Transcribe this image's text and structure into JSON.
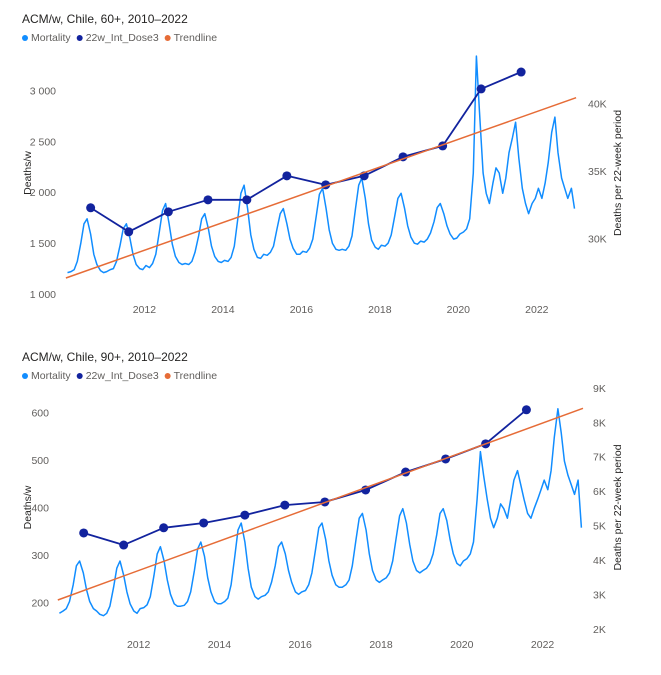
{
  "chart_data": [
    {
      "type": "line",
      "title": "ACM/w, Chile, 60+, 2010–2022",
      "ylabel": "Deaths/w",
      "y2label": "Deaths per 22-week period",
      "xlim": [
        2009.9,
        2023.1
      ],
      "xticks": [
        2012,
        2014,
        2016,
        2018,
        2020,
        2022
      ],
      "ylim": [
        1000,
        3400
      ],
      "yticks": [
        {
          "value": 1000,
          "label": "1 000"
        },
        {
          "value": 1500,
          "label": "1 500"
        },
        {
          "value": 2000,
          "label": "2 000"
        },
        {
          "value": 2500,
          "label": "2 500"
        },
        {
          "value": 3000,
          "label": "3 000"
        }
      ],
      "y2lim": [
        25900,
        44000
      ],
      "y2ticks": [
        {
          "value": 30000,
          "label": "30K"
        },
        {
          "value": 35000,
          "label": "35K"
        },
        {
          "value": 40000,
          "label": "40K"
        }
      ],
      "series": [
        {
          "name": "Mortality",
          "color": "#118dff",
          "x": [
            2010.04,
            2010.13,
            2010.21,
            2010.29,
            2010.38,
            2010.46,
            2010.54,
            2010.63,
            2010.71,
            2010.79,
            2010.88,
            2010.96,
            2011.04,
            2011.13,
            2011.21,
            2011.29,
            2011.38,
            2011.46,
            2011.54,
            2011.63,
            2011.71,
            2011.79,
            2011.88,
            2011.96,
            2012.04,
            2012.13,
            2012.21,
            2012.29,
            2012.38,
            2012.46,
            2012.54,
            2012.63,
            2012.71,
            2012.79,
            2012.88,
            2012.96,
            2013.04,
            2013.13,
            2013.21,
            2013.29,
            2013.38,
            2013.46,
            2013.54,
            2013.63,
            2013.71,
            2013.79,
            2013.88,
            2013.96,
            2014.04,
            2014.13,
            2014.21,
            2014.29,
            2014.38,
            2014.46,
            2014.54,
            2014.63,
            2014.71,
            2014.79,
            2014.88,
            2014.96,
            2015.04,
            2015.13,
            2015.21,
            2015.29,
            2015.38,
            2015.46,
            2015.54,
            2015.63,
            2015.71,
            2015.79,
            2015.88,
            2015.96,
            2016.04,
            2016.13,
            2016.21,
            2016.29,
            2016.38,
            2016.46,
            2016.54,
            2016.63,
            2016.71,
            2016.79,
            2016.88,
            2016.96,
            2017.04,
            2017.13,
            2017.21,
            2017.29,
            2017.38,
            2017.46,
            2017.54,
            2017.63,
            2017.71,
            2017.79,
            2017.88,
            2017.96,
            2018.04,
            2018.13,
            2018.21,
            2018.29,
            2018.38,
            2018.46,
            2018.54,
            2018.63,
            2018.71,
            2018.79,
            2018.88,
            2018.96,
            2019.04,
            2019.13,
            2019.21,
            2019.29,
            2019.38,
            2019.46,
            2019.54,
            2019.63,
            2019.71,
            2019.79,
            2019.88,
            2019.96,
            2020.04,
            2020.13,
            2020.21,
            2020.29,
            2020.38,
            2020.46,
            2020.54,
            2020.63,
            2020.71,
            2020.79,
            2020.88,
            2020.96,
            2021.04,
            2021.13,
            2021.21,
            2021.29,
            2021.38,
            2021.46,
            2021.54,
            2021.63,
            2021.71,
            2021.79,
            2021.88,
            2021.96,
            2022.04,
            2022.13,
            2022.21,
            2022.29,
            2022.38,
            2022.46,
            2022.54,
            2022.63,
            2022.71,
            2022.79,
            2022.88,
            2022.96
          ],
          "values": [
            1220,
            1230,
            1250,
            1330,
            1510,
            1700,
            1750,
            1600,
            1400,
            1300,
            1240,
            1220,
            1230,
            1250,
            1260,
            1330,
            1490,
            1650,
            1700,
            1560,
            1400,
            1300,
            1260,
            1250,
            1290,
            1270,
            1310,
            1400,
            1620,
            1830,
            1900,
            1700,
            1500,
            1380,
            1320,
            1300,
            1310,
            1300,
            1330,
            1420,
            1580,
            1750,
            1800,
            1650,
            1480,
            1380,
            1330,
            1320,
            1340,
            1330,
            1370,
            1480,
            1750,
            2000,
            2080,
            1850,
            1590,
            1450,
            1370,
            1360,
            1400,
            1390,
            1420,
            1480,
            1650,
            1800,
            1850,
            1700,
            1550,
            1460,
            1400,
            1400,
            1430,
            1420,
            1460,
            1550,
            1780,
            1990,
            2050,
            1850,
            1640,
            1510,
            1450,
            1440,
            1450,
            1440,
            1480,
            1580,
            1850,
            2080,
            2150,
            1950,
            1700,
            1540,
            1470,
            1450,
            1490,
            1480,
            1510,
            1590,
            1780,
            1950,
            2000,
            1850,
            1680,
            1570,
            1510,
            1500,
            1530,
            1520,
            1550,
            1610,
            1720,
            1860,
            1900,
            1800,
            1680,
            1600,
            1550,
            1560,
            1600,
            1620,
            1650,
            1750,
            2200,
            3350,
            2800,
            2200,
            2000,
            1900,
            2100,
            2250,
            2200,
            2000,
            2150,
            2400,
            2550,
            2700,
            2350,
            2050,
            1900,
            1800,
            1900,
            1950,
            2050,
            1950,
            2100,
            2300,
            2600,
            2750,
            2400,
            2150,
            2050,
            1950,
            2050,
            1850
          ]
        },
        {
          "name": "22w_Int_Dose3",
          "color": "#12239e",
          "axis": "y2",
          "x": [
            2010.63,
            2011.6,
            2012.61,
            2013.62,
            2014.61,
            2015.63,
            2016.62,
            2017.6,
            2018.59,
            2019.6,
            2020.58,
            2021.6
          ],
          "values": [
            32370,
            30590,
            32070,
            32960,
            32960,
            34740,
            34070,
            34740,
            36150,
            36960,
            41190,
            42440
          ]
        },
        {
          "name": "Trendline",
          "color": "#e66c37",
          "x": [
            2010,
            2023
          ],
          "values": [
            1167,
            2941
          ]
        }
      ]
    },
    {
      "type": "line",
      "title": "ACM/w, Chile, 90+, 2010–2022",
      "ylabel": "Deaths/w",
      "y2label": "Deaths per 22-week period",
      "xlim": [
        2009.93,
        2023.05
      ],
      "xticks": [
        2012,
        2014,
        2016,
        2018,
        2020,
        2022
      ],
      "ylim": [
        145,
        660
      ],
      "yticks": [
        200,
        300,
        400,
        500,
        600
      ],
      "y2lim": [
        2000,
        9120
      ],
      "y2ticks": [
        {
          "value": 2000,
          "label": "2K"
        },
        {
          "value": 3000,
          "label": "3K"
        },
        {
          "value": 4000,
          "label": "4K"
        },
        {
          "value": 5000,
          "label": "5K"
        },
        {
          "value": 6000,
          "label": "6K"
        },
        {
          "value": 7000,
          "label": "7K"
        },
        {
          "value": 8000,
          "label": "8K"
        },
        {
          "value": 9000,
          "label": "9K"
        }
      ],
      "series": [
        {
          "name": "Mortality",
          "color": "#118dff",
          "x": [
            2010.04,
            2010.13,
            2010.21,
            2010.29,
            2010.38,
            2010.46,
            2010.54,
            2010.63,
            2010.71,
            2010.79,
            2010.88,
            2010.96,
            2011.04,
            2011.13,
            2011.21,
            2011.29,
            2011.38,
            2011.46,
            2011.54,
            2011.63,
            2011.71,
            2011.79,
            2011.88,
            2011.96,
            2012.04,
            2012.13,
            2012.21,
            2012.29,
            2012.38,
            2012.46,
            2012.54,
            2012.63,
            2012.71,
            2012.79,
            2012.88,
            2012.96,
            2013.04,
            2013.13,
            2013.21,
            2013.29,
            2013.38,
            2013.46,
            2013.54,
            2013.63,
            2013.71,
            2013.79,
            2013.88,
            2013.96,
            2014.04,
            2014.13,
            2014.21,
            2014.29,
            2014.38,
            2014.46,
            2014.54,
            2014.63,
            2014.71,
            2014.79,
            2014.88,
            2014.96,
            2015.04,
            2015.13,
            2015.21,
            2015.29,
            2015.38,
            2015.46,
            2015.54,
            2015.63,
            2015.71,
            2015.79,
            2015.88,
            2015.96,
            2016.04,
            2016.13,
            2016.21,
            2016.29,
            2016.38,
            2016.46,
            2016.54,
            2016.63,
            2016.71,
            2016.79,
            2016.88,
            2016.96,
            2017.04,
            2017.13,
            2017.21,
            2017.29,
            2017.38,
            2017.46,
            2017.54,
            2017.63,
            2017.71,
            2017.79,
            2017.88,
            2017.96,
            2018.04,
            2018.13,
            2018.21,
            2018.29,
            2018.38,
            2018.46,
            2018.54,
            2018.63,
            2018.71,
            2018.79,
            2018.88,
            2018.96,
            2019.04,
            2019.13,
            2019.21,
            2019.29,
            2019.38,
            2019.46,
            2019.54,
            2019.63,
            2019.71,
            2019.79,
            2019.88,
            2019.96,
            2020.04,
            2020.13,
            2020.21,
            2020.29,
            2020.38,
            2020.46,
            2020.54,
            2020.63,
            2020.71,
            2020.79,
            2020.88,
            2020.96,
            2021.04,
            2021.13,
            2021.21,
            2021.29,
            2021.38,
            2021.46,
            2021.54,
            2021.63,
            2021.71,
            2021.79,
            2021.88,
            2021.96,
            2022.04,
            2022.13,
            2022.21,
            2022.29,
            2022.38,
            2022.46,
            2022.54,
            2022.63,
            2022.71,
            2022.79,
            2022.88,
            2022.96
          ],
          "values": [
            180,
            185,
            190,
            205,
            240,
            280,
            290,
            265,
            230,
            205,
            190,
            185,
            178,
            175,
            180,
            195,
            235,
            275,
            290,
            260,
            225,
            200,
            185,
            180,
            190,
            192,
            198,
            215,
            260,
            305,
            320,
            290,
            250,
            220,
            200,
            195,
            195,
            197,
            205,
            225,
            270,
            315,
            330,
            300,
            255,
            225,
            205,
            200,
            200,
            205,
            212,
            240,
            300,
            355,
            370,
            330,
            275,
            235,
            215,
            210,
            215,
            218,
            225,
            245,
            280,
            320,
            330,
            305,
            270,
            245,
            225,
            220,
            225,
            228,
            240,
            265,
            315,
            360,
            370,
            335,
            290,
            260,
            240,
            235,
            235,
            240,
            250,
            280,
            335,
            380,
            390,
            355,
            305,
            270,
            250,
            245,
            250,
            255,
            265,
            290,
            340,
            385,
            400,
            370,
            325,
            290,
            270,
            265,
            270,
            275,
            285,
            305,
            345,
            390,
            400,
            375,
            335,
            305,
            285,
            280,
            290,
            295,
            305,
            330,
            420,
            520,
            470,
            420,
            380,
            360,
            380,
            410,
            400,
            380,
            420,
            460,
            480,
            450,
            420,
            390,
            380,
            400,
            420,
            440,
            460,
            440,
            480,
            550,
            610,
            560,
            500,
            470,
            450,
            430,
            460,
            360
          ]
        },
        {
          "name": "22w_Int_Dose3",
          "color": "#12239e",
          "axis": "y2",
          "x": [
            2010.64,
            2011.63,
            2012.62,
            2013.61,
            2014.63,
            2015.62,
            2016.61,
            2017.62,
            2018.61,
            2019.6,
            2020.59,
            2021.6
          ],
          "values": [
            4820,
            4470,
            4970,
            5110,
            5340,
            5630,
            5720,
            6070,
            6590,
            6970,
            7410,
            8400
          ]
        },
        {
          "name": "Trendline",
          "color": "#e66c37",
          "x": [
            2010,
            2023
          ],
          "values": [
            208,
            611
          ]
        }
      ]
    }
  ]
}
